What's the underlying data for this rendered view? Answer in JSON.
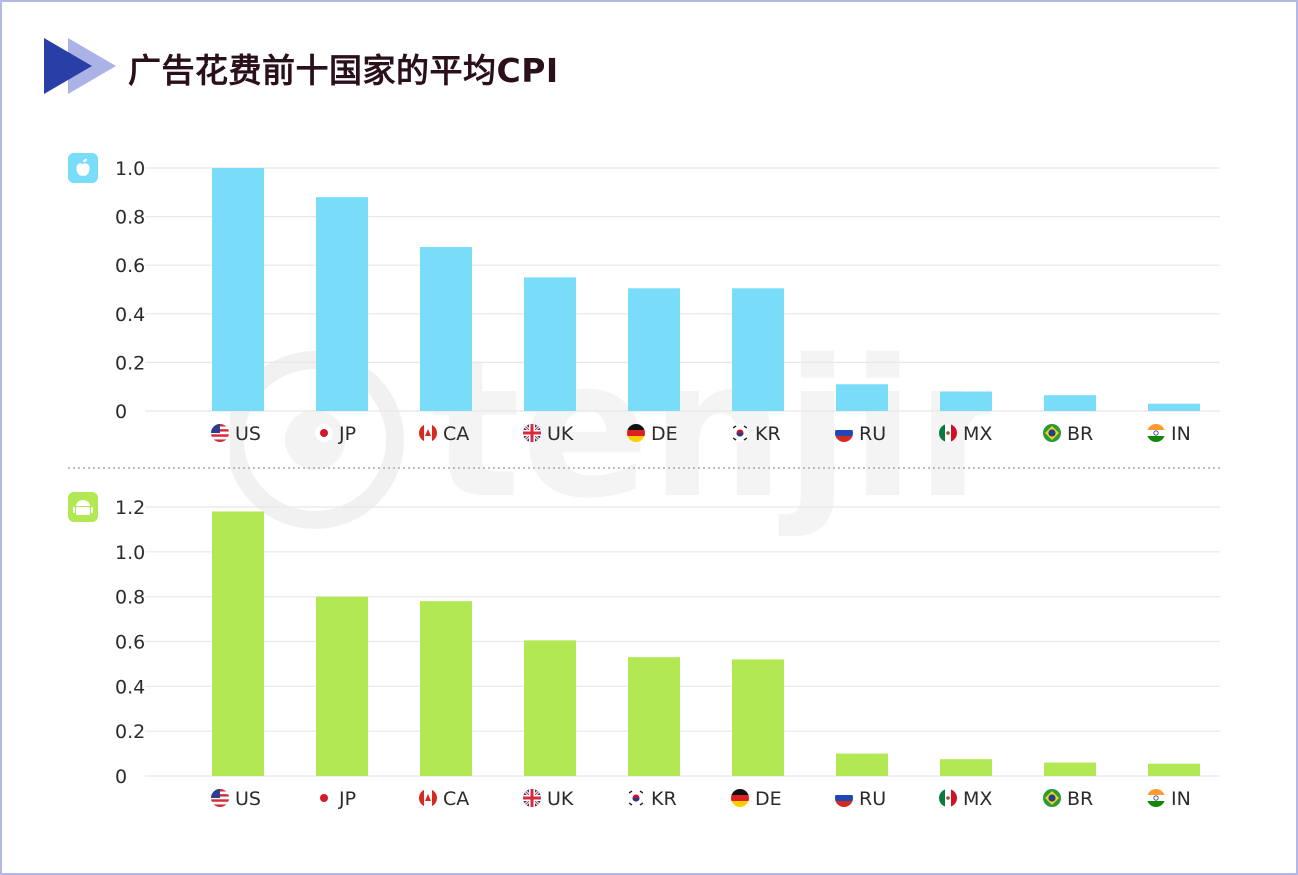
{
  "title": "广告花费前十国家的平均CPI",
  "colors": {
    "ios_bar": "#79dcf8",
    "android_bar": "#b2e853",
    "frame": "#b4b8e8",
    "header_arrow_dark": "#2a3ea8",
    "header_arrow_light": "#aab2e6",
    "title": "#2a0f1c",
    "grid": "#e8e8e8",
    "tick_text": "#2b2b2b"
  },
  "watermark": {
    "text": "tenjin"
  },
  "chart_data": [
    {
      "type": "bar",
      "platform_icon": "apple-icon",
      "categories": [
        "US",
        "JP",
        "CA",
        "UK",
        "DE",
        "KR",
        "RU",
        "MX",
        "BR",
        "IN"
      ],
      "values": [
        1.0,
        0.88,
        0.675,
        0.55,
        0.505,
        0.505,
        0.11,
        0.08,
        0.065,
        0.03
      ],
      "yticks": [
        "0",
        "0.2",
        "0.4",
        "0.6",
        "0.8",
        "1.0"
      ],
      "ylim": [
        0,
        1.0
      ],
      "grid": true
    },
    {
      "type": "bar",
      "platform_icon": "android-icon",
      "categories": [
        "US",
        "JP",
        "CA",
        "UK",
        "KR",
        "DE",
        "RU",
        "MX",
        "BR",
        "IN"
      ],
      "values": [
        1.18,
        0.8,
        0.78,
        0.605,
        0.53,
        0.52,
        0.1,
        0.075,
        0.06,
        0.055
      ],
      "yticks": [
        "0",
        "0.2",
        "0.4",
        "0.6",
        "0.8",
        "1.0",
        "1.2"
      ],
      "ylim": [
        0,
        1.2
      ],
      "grid": true
    }
  ]
}
